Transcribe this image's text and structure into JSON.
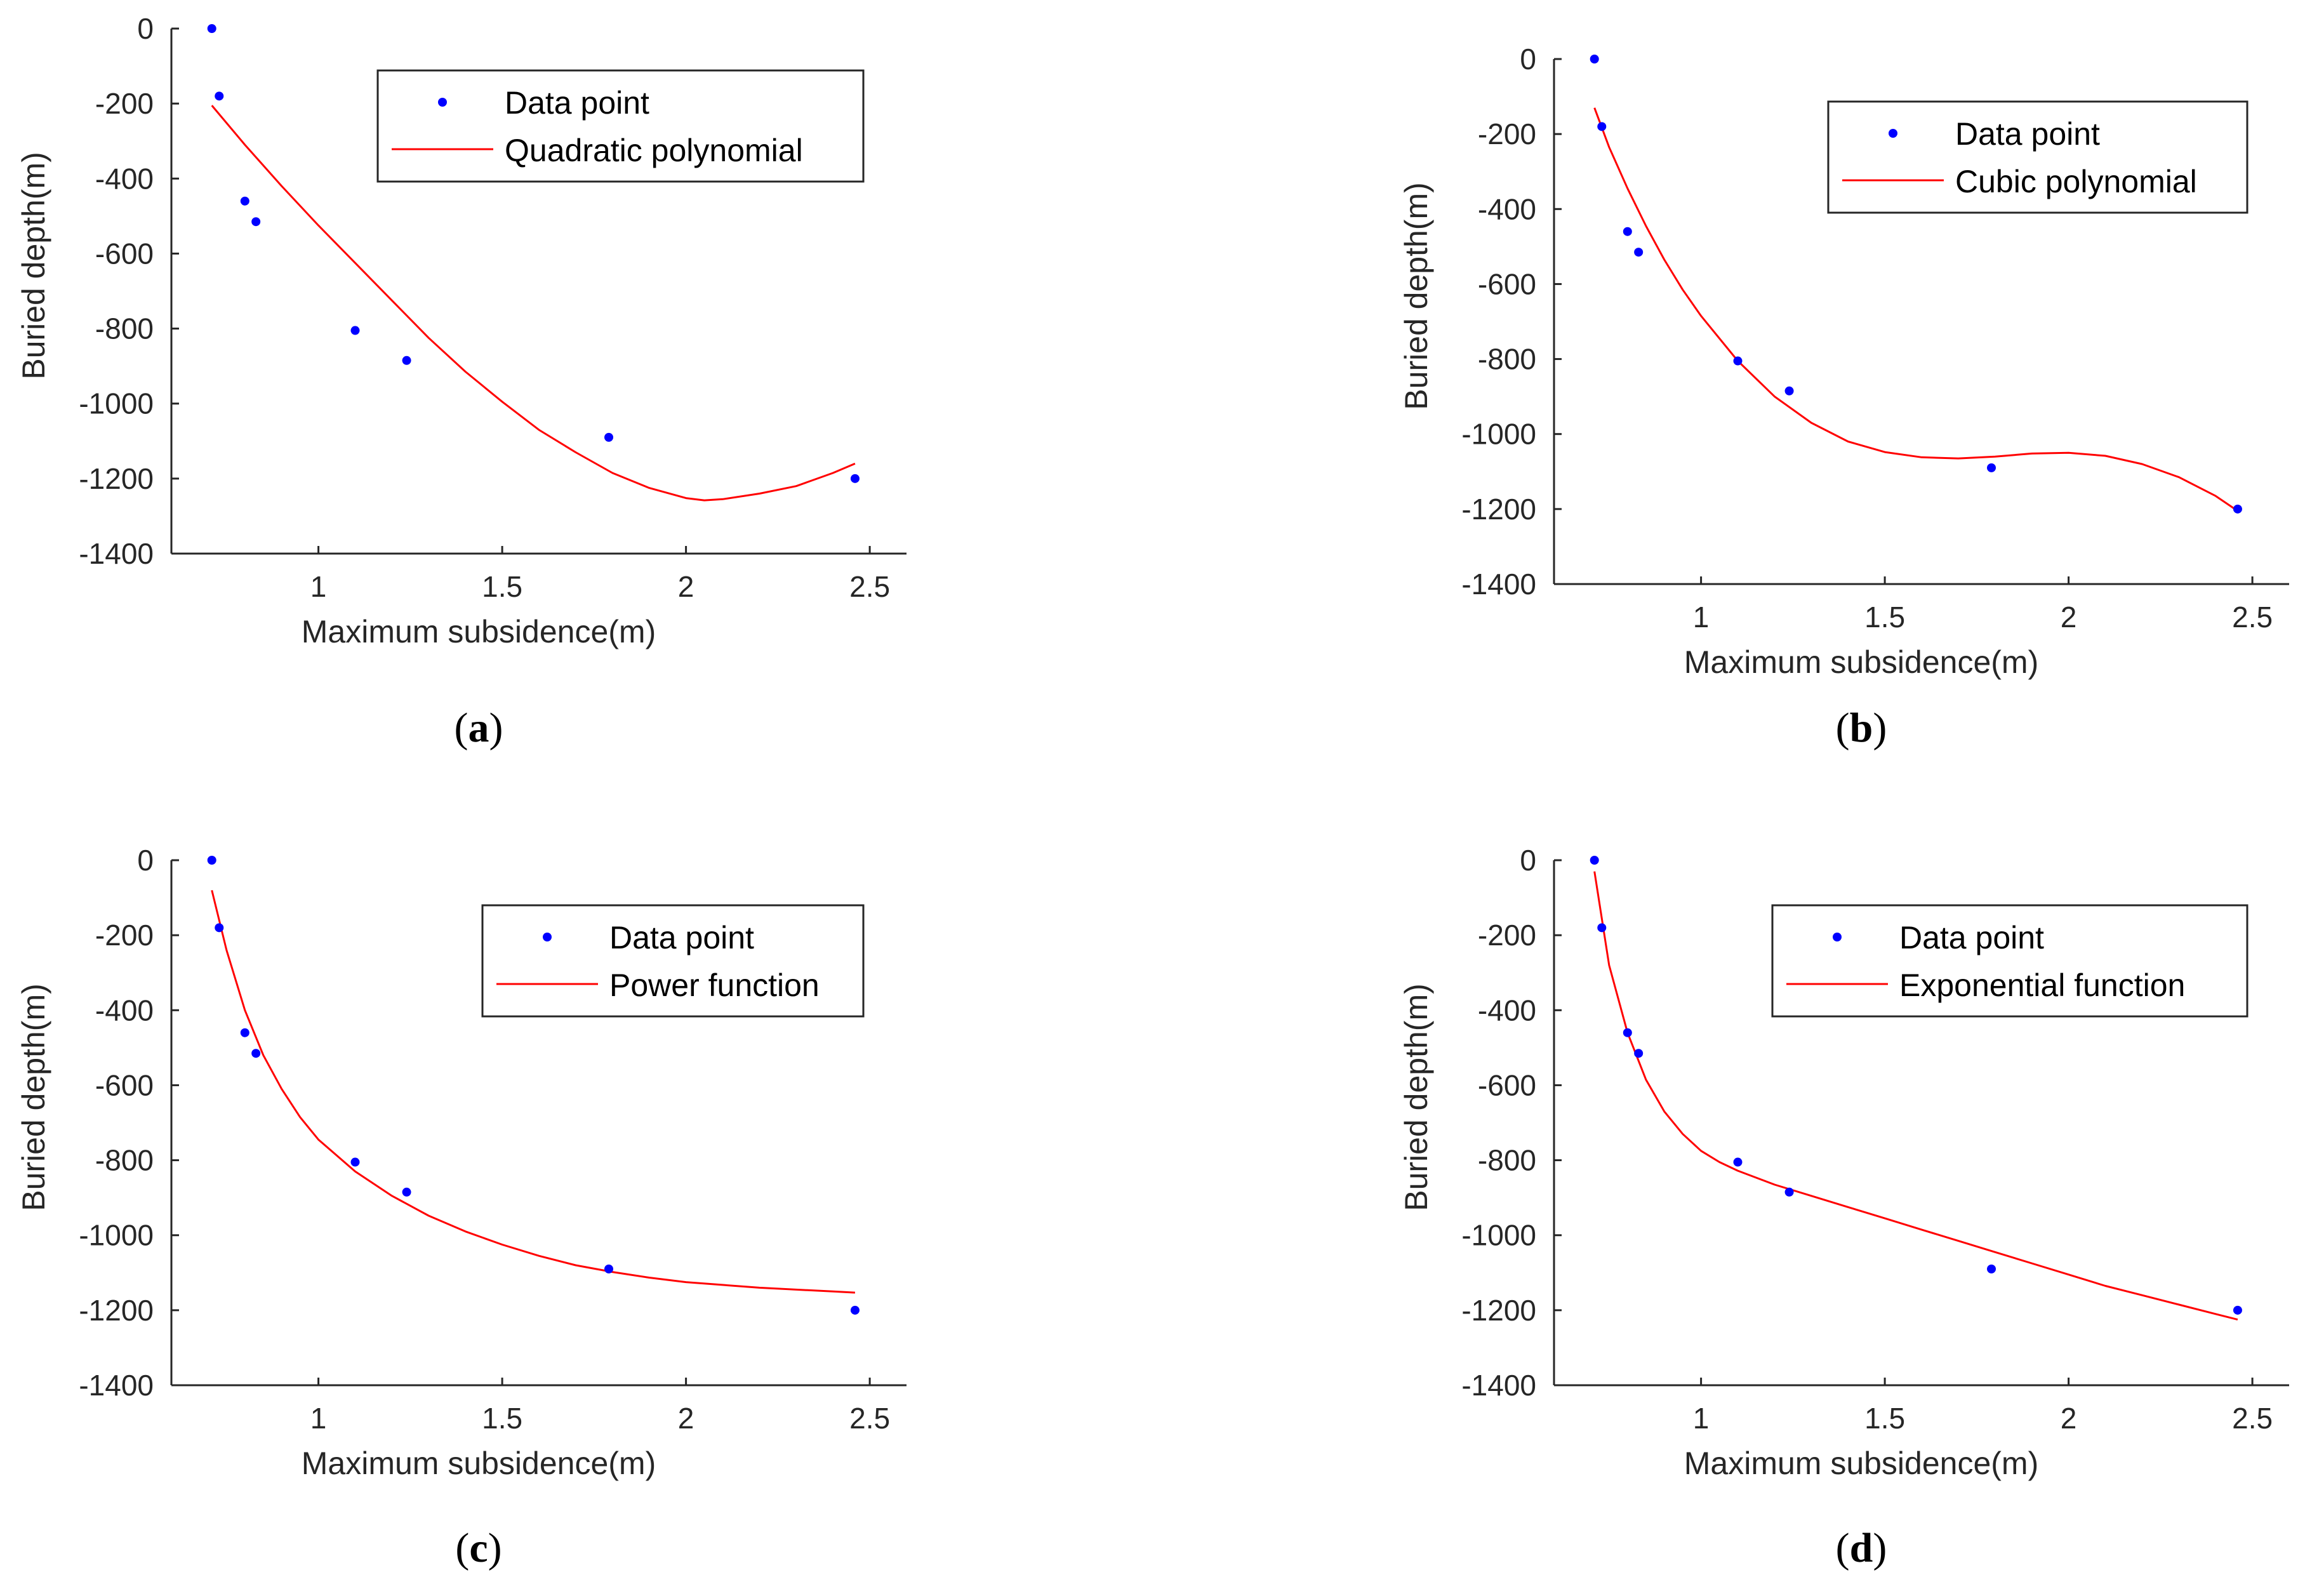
{
  "figure": {
    "colors": {
      "axis": "#262626",
      "data_point": "#0000ff",
      "fit_line": "#ff0000",
      "legend_border": "#262626",
      "background": "#ffffff"
    }
  },
  "chart_data": [
    {
      "id": "a",
      "type": "scatter",
      "caption": {
        "open": "(",
        "letter": "a",
        "close": ")"
      },
      "xlabel": "Maximum subsidence(m)",
      "ylabel": "Buried depth(m)",
      "xlim": [
        0.6,
        2.6
      ],
      "ylim": [
        -1400,
        0
      ],
      "xticks": [
        1,
        1.5,
        2,
        2.5
      ],
      "xtick_labels": [
        "1",
        "1.5",
        "2",
        "2.5"
      ],
      "yticks": [
        0,
        -200,
        -400,
        -600,
        -800,
        -1000,
        -1200,
        -1400
      ],
      "ytick_labels": [
        "0",
        "-200",
        "-400",
        "-600",
        "-800",
        "-1000",
        "-1200",
        "-1400"
      ],
      "legend": {
        "position": "top-right",
        "entries": [
          "Data point",
          "Quadratic polynomial"
        ]
      },
      "series": [
        {
          "name": "Data point",
          "kind": "points",
          "x": [
            0.71,
            0.73,
            0.8,
            0.83,
            1.1,
            1.24,
            1.79,
            2.46
          ],
          "y": [
            0,
            -180,
            -460,
            -515,
            -805,
            -885,
            -1090,
            -1200
          ]
        },
        {
          "name": "Quadratic polynomial",
          "kind": "line",
          "x": [
            0.71,
            0.8,
            0.9,
            1.0,
            1.1,
            1.2,
            1.3,
            1.4,
            1.5,
            1.6,
            1.7,
            1.8,
            1.9,
            2.0,
            2.05,
            2.1,
            2.2,
            2.3,
            2.4,
            2.46
          ],
          "y": [
            -205,
            -310,
            -420,
            -525,
            -625,
            -725,
            -825,
            -915,
            -995,
            -1070,
            -1130,
            -1185,
            -1225,
            -1252,
            -1258,
            -1255,
            -1240,
            -1220,
            -1185,
            -1160
          ]
        }
      ]
    },
    {
      "id": "b",
      "type": "scatter",
      "caption": {
        "open": "(",
        "letter": "b",
        "close": ")"
      },
      "xlabel": "Maximum subsidence(m)",
      "ylabel": "Buried depth(m)",
      "xlim": [
        0.6,
        2.6
      ],
      "ylim": [
        -1400,
        0
      ],
      "xticks": [
        1,
        1.5,
        2,
        2.5
      ],
      "xtick_labels": [
        "1",
        "1.5",
        "2",
        "2.5"
      ],
      "yticks": [
        0,
        -200,
        -400,
        -600,
        -800,
        -1000,
        -1200,
        -1400
      ],
      "ytick_labels": [
        "0",
        "-200",
        "-400",
        "-600",
        "-800",
        "-1000",
        "-1200",
        "-1400"
      ],
      "legend": {
        "position": "top-right",
        "entries": [
          "Data point",
          "Cubic polynomial"
        ]
      },
      "series": [
        {
          "name": "Data point",
          "kind": "points",
          "x": [
            0.71,
            0.73,
            0.8,
            0.83,
            1.1,
            1.24,
            1.79,
            2.46
          ],
          "y": [
            0,
            -180,
            -460,
            -515,
            -805,
            -885,
            -1090,
            -1200
          ]
        },
        {
          "name": "Cubic polynomial",
          "kind": "line",
          "x": [
            0.71,
            0.75,
            0.8,
            0.85,
            0.9,
            0.95,
            1.0,
            1.1,
            1.2,
            1.3,
            1.4,
            1.5,
            1.6,
            1.7,
            1.8,
            1.9,
            2.0,
            2.1,
            2.2,
            2.3,
            2.4,
            2.46
          ],
          "y": [
            -130,
            -235,
            -345,
            -445,
            -535,
            -615,
            -685,
            -805,
            -900,
            -970,
            -1020,
            -1048,
            -1062,
            -1065,
            -1060,
            -1052,
            -1050,
            -1058,
            -1080,
            -1115,
            -1165,
            -1205
          ]
        }
      ]
    },
    {
      "id": "c",
      "type": "scatter",
      "caption": {
        "open": "(",
        "letter": "c",
        "close": ")"
      },
      "xlabel": "Maximum subsidence(m)",
      "ylabel": "Buried depth(m)",
      "xlim": [
        0.6,
        2.6
      ],
      "ylim": [
        -1400,
        0
      ],
      "xticks": [
        1,
        1.5,
        2,
        2.5
      ],
      "xtick_labels": [
        "1",
        "1.5",
        "2",
        "2.5"
      ],
      "yticks": [
        0,
        -200,
        -400,
        -600,
        -800,
        -1000,
        -1200,
        -1400
      ],
      "ytick_labels": [
        "0",
        "-200",
        "-400",
        "-600",
        "-800",
        "-1000",
        "-1200",
        "-1400"
      ],
      "legend": {
        "position": "top-right",
        "entries": [
          "Data point",
          "Power function"
        ]
      },
      "series": [
        {
          "name": "Data point",
          "kind": "points",
          "x": [
            0.71,
            0.73,
            0.8,
            0.83,
            1.1,
            1.24,
            1.79,
            2.46
          ],
          "y": [
            0,
            -180,
            -460,
            -515,
            -805,
            -885,
            -1090,
            -1200
          ]
        },
        {
          "name": "Power function",
          "kind": "line",
          "x": [
            0.71,
            0.75,
            0.8,
            0.85,
            0.9,
            0.95,
            1.0,
            1.1,
            1.2,
            1.3,
            1.4,
            1.5,
            1.6,
            1.7,
            1.8,
            1.9,
            2.0,
            2.2,
            2.4,
            2.46
          ],
          "y": [
            -80,
            -240,
            -400,
            -520,
            -610,
            -685,
            -745,
            -830,
            -895,
            -948,
            -990,
            -1025,
            -1055,
            -1080,
            -1098,
            -1113,
            -1125,
            -1140,
            -1150,
            -1153
          ]
        }
      ]
    },
    {
      "id": "d",
      "type": "scatter",
      "caption": {
        "open": "(",
        "letter": "d",
        "close": ")"
      },
      "xlabel": "Maximum subsidence(m)",
      "ylabel": "Buried depth(m)",
      "xlim": [
        0.6,
        2.6
      ],
      "ylim": [
        -1400,
        0
      ],
      "xticks": [
        1,
        1.5,
        2,
        2.5
      ],
      "xtick_labels": [
        "1",
        "1.5",
        "2",
        "2.5"
      ],
      "yticks": [
        0,
        -200,
        -400,
        -600,
        -800,
        -1000,
        -1200,
        -1400
      ],
      "ytick_labels": [
        "0",
        "-200",
        "-400",
        "-600",
        "-800",
        "-1000",
        "-1200",
        "-1400"
      ],
      "legend": {
        "position": "top-right",
        "entries": [
          "Data point",
          "Exponential function"
        ]
      },
      "series": [
        {
          "name": "Data point",
          "kind": "points",
          "x": [
            0.71,
            0.73,
            0.8,
            0.83,
            1.1,
            1.24,
            1.79,
            2.46
          ],
          "y": [
            0,
            -180,
            -460,
            -515,
            -805,
            -885,
            -1090,
            -1200
          ]
        },
        {
          "name": "Exponential function",
          "kind": "line",
          "x": [
            0.71,
            0.75,
            0.8,
            0.85,
            0.9,
            0.95,
            1.0,
            1.05,
            1.1,
            1.2,
            1.3,
            1.4,
            1.5,
            1.6,
            1.7,
            1.8,
            1.9,
            2.0,
            2.1,
            2.2,
            2.3,
            2.4,
            2.46
          ],
          "y": [
            -30,
            -280,
            -460,
            -585,
            -670,
            -730,
            -775,
            -805,
            -828,
            -865,
            -895,
            -925,
            -955,
            -985,
            -1015,
            -1045,
            -1075,
            -1105,
            -1135,
            -1160,
            -1185,
            -1210,
            -1225
          ]
        }
      ]
    }
  ]
}
